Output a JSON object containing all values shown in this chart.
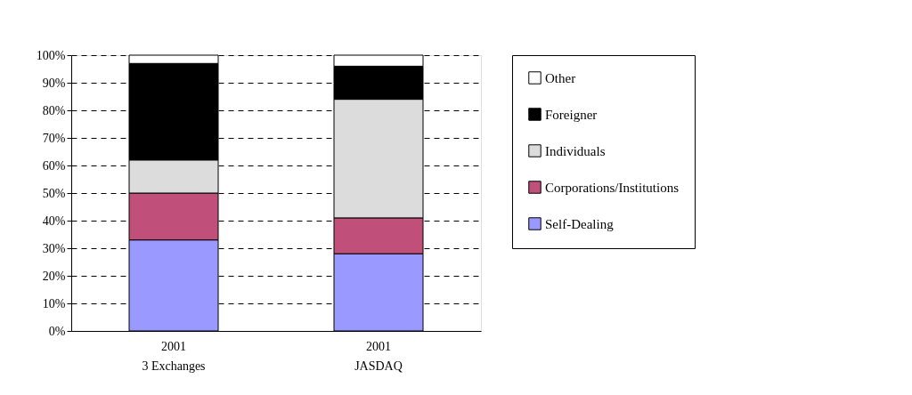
{
  "chart_data": {
    "type": "bar",
    "stacked": true,
    "categories": [
      "2001\n3 Exchanges",
      "2001\nJASDAQ"
    ],
    "series": [
      {
        "name": "Self-Dealing",
        "color": "#9999ff",
        "values": [
          33,
          28
        ]
      },
      {
        "name": "Corporations/Institutions",
        "color": "#c0507a",
        "values": [
          17,
          13
        ]
      },
      {
        "name": "Individuals",
        "color": "#dcdcdc",
        "values": [
          12,
          43
        ]
      },
      {
        "name": "Foreigner",
        "color": "#000000",
        "values": [
          35,
          12
        ]
      },
      {
        "name": "Other",
        "color": "#ffffff",
        "values": [
          3,
          4
        ]
      }
    ],
    "ylim": [
      0,
      100
    ],
    "yticks": [
      {
        "value": 0,
        "label": "0%"
      },
      {
        "value": 10,
        "label": "10%"
      },
      {
        "value": 20,
        "label": "20%"
      },
      {
        "value": 30,
        "label": "30%"
      },
      {
        "value": 40,
        "label": "40%"
      },
      {
        "value": 50,
        "label": "50%"
      },
      {
        "value": 60,
        "label": "60%"
      },
      {
        "value": 70,
        "label": "70%"
      },
      {
        "value": 80,
        "label": "80%"
      },
      {
        "value": 90,
        "label": "90%"
      },
      {
        "value": 100,
        "label": "100%"
      }
    ],
    "grid": "y",
    "legend": "right"
  }
}
